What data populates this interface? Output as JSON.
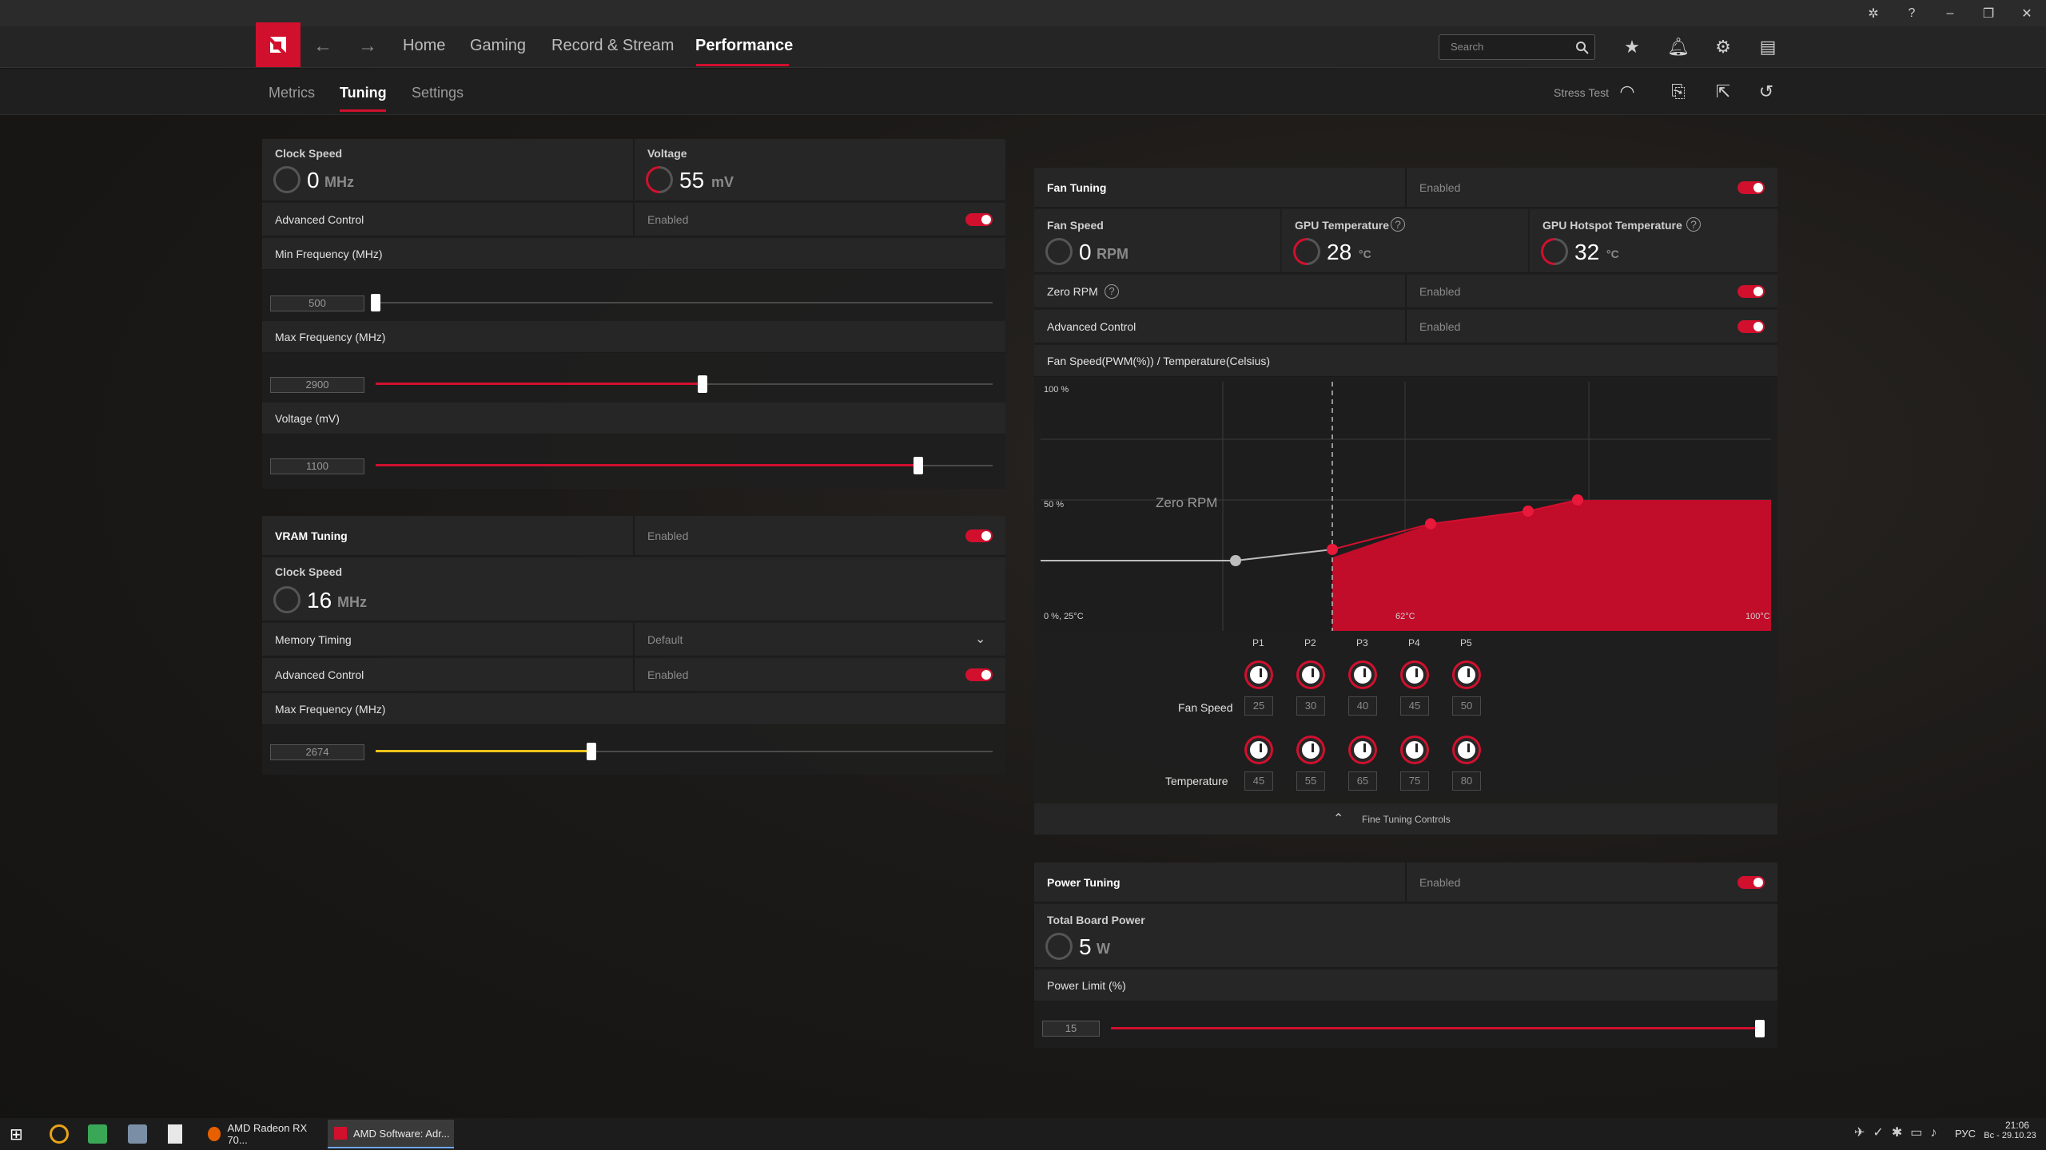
{
  "colors": {
    "accent": "#d1102e",
    "vram_slider": "#f0c419"
  },
  "nav": {
    "items": [
      "Home",
      "Gaming",
      "Record & Stream",
      "Performance"
    ],
    "active": "Performance",
    "search_placeholder": "Search"
  },
  "subtabs": {
    "items": [
      "Metrics",
      "Tuning",
      "Settings"
    ],
    "active": "Tuning",
    "stress_test": "Stress Test"
  },
  "gpu_tuning": {
    "clock_speed_label": "Clock Speed",
    "clock_speed_value": "0",
    "clock_speed_unit": "MHz",
    "voltage_label": "Voltage",
    "voltage_value": "55",
    "voltage_unit": "mV",
    "advanced_control_label": "Advanced Control",
    "advanced_control_state": "Enabled",
    "min_freq_label": "Min Frequency (MHz)",
    "min_freq_value": "500",
    "min_freq_fraction": 0.0,
    "max_freq_label": "Max Frequency (MHz)",
    "max_freq_value": "2900",
    "max_freq_fraction": 0.53,
    "voltage_slider_label": "Voltage (mV)",
    "voltage_slider_value": "1100",
    "voltage_slider_fraction": 0.88
  },
  "vram_tuning": {
    "title": "VRAM Tuning",
    "state": "Enabled",
    "clock_speed_label": "Clock Speed",
    "clock_speed_value": "16",
    "clock_speed_unit": "MHz",
    "memory_timing_label": "Memory Timing",
    "memory_timing_value": "Default",
    "advanced_control_label": "Advanced Control",
    "advanced_control_state": "Enabled",
    "max_freq_label": "Max Frequency (MHz)",
    "max_freq_value": "2674",
    "max_freq_fraction": 0.35
  },
  "fan_tuning": {
    "title": "Fan Tuning",
    "state": "Enabled",
    "fan_speed_label": "Fan Speed",
    "fan_speed_value": "0",
    "fan_speed_unit": "RPM",
    "gpu_temp_label": "GPU Temperature",
    "gpu_temp_value": "28",
    "gpu_temp_unit": "°C",
    "hotspot_label": "GPU Hotspot Temperature",
    "hotspot_value": "32",
    "hotspot_unit": "°C",
    "zero_rpm_label": "Zero RPM",
    "zero_rpm_state": "Enabled",
    "advanced_control_label": "Advanced Control",
    "advanced_control_state": "Enabled",
    "chart_title": "Fan Speed(PWM(%)) / Temperature(Celsius)",
    "y_top": "100 %",
    "y_mid": "50 %",
    "origin": "0 %, 25°C",
    "x_mid": "62°C",
    "x_max": "100°C",
    "zero_rpm_text": "Zero RPM",
    "points": [
      "P1",
      "P2",
      "P3",
      "P4",
      "P5"
    ],
    "fan_speed_row_label": "Fan Speed",
    "fan_speeds": [
      "25",
      "30",
      "40",
      "45",
      "50"
    ],
    "temperature_row_label": "Temperature",
    "temperatures": [
      "45",
      "55",
      "65",
      "75",
      "80"
    ],
    "fine_tuning": "Fine Tuning Controls"
  },
  "power_tuning": {
    "title": "Power Tuning",
    "state": "Enabled",
    "tbp_label": "Total Board Power",
    "tbp_value": "5",
    "tbp_unit": "W",
    "limit_label": "Power Limit (%)",
    "limit_value": "15",
    "limit_fraction": 1.0
  },
  "taskbar": {
    "apps": [
      "AMD Radeon RX 70...",
      "AMD Software: Adr..."
    ],
    "lang": "РУС",
    "time": "21:06",
    "date": "Вс - 29.10.23"
  }
}
